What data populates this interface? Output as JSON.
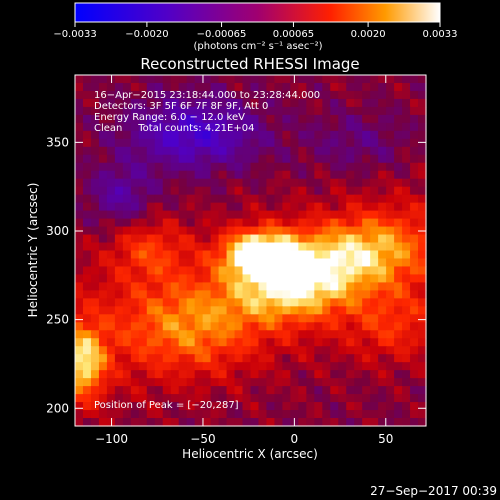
{
  "chart_data": {
    "type": "heatmap",
    "title": "Reconstructed RHESSI Image",
    "xlabel": "Heliocentric X (arcsec)",
    "ylabel": "Heliocentric Y (arcsec)",
    "xlim": [
      -120,
      72
    ],
    "ylim": [
      190,
      388
    ],
    "x_ticks": [
      -100,
      -50,
      0,
      50
    ],
    "x_tick_labels": [
      "−100",
      "−50",
      "0",
      "50"
    ],
    "y_ticks": [
      200,
      250,
      300,
      350
    ],
    "y_tick_labels": [
      "200",
      "250",
      "300",
      "350"
    ],
    "colorbar": {
      "min": -0.0033,
      "max": 0.0033,
      "ticks": [
        -0.0033,
        -0.002,
        -0.00065,
        0.00065,
        0.002,
        0.0033
      ],
      "tick_labels": [
        "−0.0033",
        "−0.0020",
        "−0.00065",
        "0.00065",
        "0.0020",
        "0.0033"
      ],
      "unit_label": "(photons cm⁻² s⁻¹ asec⁻²)"
    },
    "annotations": [
      "16−Apr−2015 23:18:44.000 to 23:28:44.000",
      "Detectors: 3F 5F 6F 7F 8F 9F, Att 0",
      "Energy Range: 6.0 − 12.0 keV",
      "Clean     Total counts: 4.21E+04"
    ],
    "peak_label": "Position of Peak = [−20,287]",
    "peak": [
      -20,
      287
    ],
    "sources": [
      {
        "x": -20,
        "y": 287,
        "amp": 1.0,
        "sx": 13,
        "sy": 9
      },
      {
        "x": 12,
        "y": 282,
        "amp": 0.55,
        "sx": 20,
        "sy": 14
      },
      {
        "x": 45,
        "y": 290,
        "amp": 0.45,
        "sx": 18,
        "sy": 14
      },
      {
        "x": -5,
        "y": 265,
        "amp": 0.5,
        "sx": 22,
        "sy": 12
      },
      {
        "x": -55,
        "y": 245,
        "amp": 0.4,
        "sx": 25,
        "sy": 18
      },
      {
        "x": -115,
        "y": 225,
        "amp": 0.7,
        "sx": 8,
        "sy": 14
      },
      {
        "x": 55,
        "y": 245,
        "amp": 0.3,
        "sx": 18,
        "sy": 14
      },
      {
        "x": -80,
        "y": 290,
        "amp": 0.35,
        "sx": 15,
        "sy": 12
      }
    ],
    "negative_regions": [
      {
        "x": -55,
        "y": 355,
        "amp": -0.55,
        "sx": 25,
        "sy": 14
      },
      {
        "x": -95,
        "y": 320,
        "amp": -0.35,
        "sx": 12,
        "sy": 12
      },
      {
        "x": 35,
        "y": 350,
        "amp": -0.2,
        "sx": 20,
        "sy": 12
      }
    ]
  },
  "footer_timestamp": "27−Sep−2017 00:39"
}
